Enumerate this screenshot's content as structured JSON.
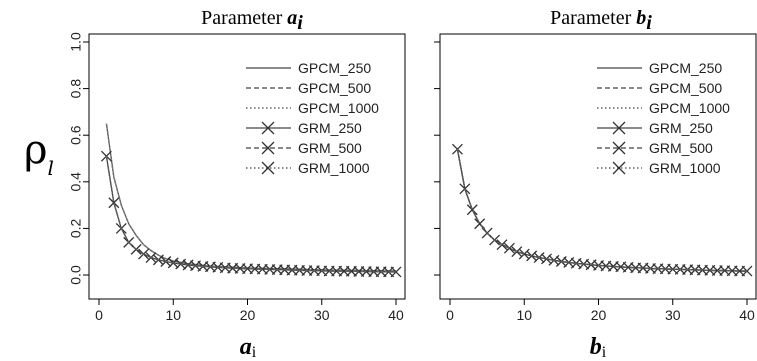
{
  "y_axis_label": {
    "symbol": "ρ",
    "subscript": "l"
  },
  "legend_entries": [
    {
      "label": "GPCM_250",
      "line": "solid",
      "marker": false
    },
    {
      "label": "GPCM_500",
      "line": "dashed",
      "marker": false
    },
    {
      "label": "GPCM_1000",
      "line": "dotted",
      "marker": false
    },
    {
      "label": "GRM_250",
      "line": "solid",
      "marker": true
    },
    {
      "label": "GRM_500",
      "line": "dashed",
      "marker": true
    },
    {
      "label": "GRM_1000",
      "line": "dotted",
      "marker": true
    }
  ],
  "chart_data": [
    {
      "type": "line",
      "title": {
        "text": "Parameter ",
        "symbol": "a",
        "subscript": "i"
      },
      "xlabel": {
        "symbol": "a",
        "subscript": "i"
      },
      "xlim": [
        0,
        40
      ],
      "ylim": [
        0,
        1
      ],
      "xticks": [
        0,
        10,
        20,
        30,
        40
      ],
      "yticks": [
        0.0,
        0.2,
        0.4,
        0.6,
        0.8,
        1.0
      ],
      "legend_position": "top-right",
      "grid": false,
      "series": [
        {
          "name": "GPCM_250",
          "x": [
            1,
            2,
            3,
            4,
            5,
            6,
            7,
            8,
            9,
            10,
            12,
            15,
            20,
            25,
            30,
            35,
            40
          ],
          "y": [
            0.65,
            0.42,
            0.3,
            0.22,
            0.17,
            0.13,
            0.105,
            0.085,
            0.07,
            0.06,
            0.048,
            0.038,
            0.03,
            0.026,
            0.022,
            0.019,
            0.017
          ]
        },
        {
          "name": "GPCM_500",
          "x": [
            1,
            2,
            3,
            4,
            5,
            6,
            7,
            8,
            9,
            10,
            12,
            15,
            20,
            25,
            30,
            35,
            40
          ],
          "y": [
            0.65,
            0.42,
            0.3,
            0.22,
            0.17,
            0.13,
            0.105,
            0.085,
            0.07,
            0.06,
            0.048,
            0.038,
            0.03,
            0.026,
            0.022,
            0.019,
            0.017
          ]
        },
        {
          "name": "GPCM_1000",
          "x": [
            1,
            2,
            3,
            4,
            5,
            6,
            7,
            8,
            9,
            10,
            12,
            15,
            20,
            25,
            30,
            35,
            40
          ],
          "y": [
            0.65,
            0.42,
            0.3,
            0.22,
            0.17,
            0.13,
            0.105,
            0.085,
            0.07,
            0.06,
            0.048,
            0.038,
            0.03,
            0.026,
            0.022,
            0.019,
            0.017
          ]
        },
        {
          "name": "GRM_250",
          "x": [
            1,
            2,
            3,
            4,
            5,
            6,
            7,
            8,
            9,
            10,
            11,
            12,
            13,
            14,
            15,
            16,
            17,
            18,
            19,
            20,
            21,
            22,
            23,
            24,
            25,
            26,
            27,
            28,
            29,
            30,
            31,
            32,
            33,
            34,
            35,
            36,
            37,
            38,
            39,
            40
          ],
          "y": [
            0.51,
            0.31,
            0.2,
            0.14,
            0.11,
            0.09,
            0.075,
            0.065,
            0.058,
            0.052,
            0.047,
            0.043,
            0.04,
            0.037,
            0.035,
            0.033,
            0.031,
            0.029,
            0.028,
            0.027,
            0.026,
            0.025,
            0.024,
            0.023,
            0.022,
            0.021,
            0.02,
            0.019,
            0.019,
            0.018,
            0.017,
            0.017,
            0.016,
            0.016,
            0.015,
            0.015,
            0.014,
            0.014,
            0.013,
            0.013
          ]
        },
        {
          "name": "GRM_500",
          "x": [
            1,
            2,
            3,
            4,
            5,
            6,
            7,
            8,
            9,
            10,
            11,
            12,
            13,
            14,
            15,
            16,
            17,
            18,
            19,
            20,
            21,
            22,
            23,
            24,
            25,
            26,
            27,
            28,
            29,
            30,
            31,
            32,
            33,
            34,
            35,
            36,
            37,
            38,
            39,
            40
          ],
          "y": [
            0.51,
            0.31,
            0.2,
            0.14,
            0.11,
            0.09,
            0.075,
            0.065,
            0.058,
            0.052,
            0.047,
            0.043,
            0.04,
            0.037,
            0.035,
            0.033,
            0.031,
            0.029,
            0.028,
            0.027,
            0.026,
            0.025,
            0.024,
            0.023,
            0.022,
            0.021,
            0.02,
            0.019,
            0.019,
            0.018,
            0.017,
            0.017,
            0.016,
            0.016,
            0.015,
            0.015,
            0.014,
            0.014,
            0.013,
            0.013
          ]
        },
        {
          "name": "GRM_1000",
          "x": [
            1,
            2,
            3,
            4,
            5,
            6,
            7,
            8,
            9,
            10,
            11,
            12,
            13,
            14,
            15,
            16,
            17,
            18,
            19,
            20,
            21,
            22,
            23,
            24,
            25,
            26,
            27,
            28,
            29,
            30,
            31,
            32,
            33,
            34,
            35,
            36,
            37,
            38,
            39,
            40
          ],
          "y": [
            0.51,
            0.31,
            0.2,
            0.14,
            0.11,
            0.09,
            0.075,
            0.065,
            0.058,
            0.052,
            0.047,
            0.043,
            0.04,
            0.037,
            0.035,
            0.033,
            0.031,
            0.029,
            0.028,
            0.027,
            0.026,
            0.025,
            0.024,
            0.023,
            0.022,
            0.021,
            0.02,
            0.019,
            0.019,
            0.018,
            0.017,
            0.017,
            0.016,
            0.016,
            0.015,
            0.015,
            0.014,
            0.014,
            0.013,
            0.013
          ]
        }
      ]
    },
    {
      "type": "line",
      "title": {
        "text": "Parameter ",
        "symbol": "b",
        "subscript": "i"
      },
      "xlabel": {
        "symbol": "b",
        "subscript": "i"
      },
      "xlim": [
        0,
        40
      ],
      "ylim": [
        0,
        1
      ],
      "xticks": [
        0,
        10,
        20,
        30,
        40
      ],
      "yticks": [
        0.0,
        0.2,
        0.4,
        0.6,
        0.8,
        1.0
      ],
      "legend_position": "top-right",
      "grid": false,
      "series": [
        {
          "name": "GPCM_250",
          "x": [
            1,
            2,
            3,
            4,
            5,
            6,
            7,
            8,
            9,
            10,
            11,
            12,
            13,
            14,
            15,
            16,
            17,
            18,
            19,
            20,
            21,
            22,
            23,
            24,
            25,
            26,
            27,
            28,
            29,
            30,
            31,
            32,
            33,
            34,
            35,
            36,
            37,
            38,
            39,
            40
          ],
          "y": [
            0.54,
            0.37,
            0.28,
            0.22,
            0.18,
            0.15,
            0.13,
            0.115,
            0.1,
            0.09,
            0.082,
            0.075,
            0.069,
            0.063,
            0.058,
            0.054,
            0.05,
            0.047,
            0.044,
            0.041,
            0.039,
            0.037,
            0.035,
            0.033,
            0.031,
            0.03,
            0.028,
            0.027,
            0.026,
            0.025,
            0.024,
            0.023,
            0.022,
            0.021,
            0.02,
            0.019,
            0.019,
            0.018,
            0.017,
            0.017
          ]
        },
        {
          "name": "GPCM_500",
          "x": [
            1,
            2,
            3,
            4,
            5,
            6,
            7,
            8,
            9,
            10,
            11,
            12,
            13,
            14,
            15,
            16,
            17,
            18,
            19,
            20,
            21,
            22,
            23,
            24,
            25,
            26,
            27,
            28,
            29,
            30,
            31,
            32,
            33,
            34,
            35,
            36,
            37,
            38,
            39,
            40
          ],
          "y": [
            0.54,
            0.37,
            0.28,
            0.22,
            0.18,
            0.15,
            0.13,
            0.115,
            0.1,
            0.09,
            0.082,
            0.075,
            0.069,
            0.063,
            0.058,
            0.054,
            0.05,
            0.047,
            0.044,
            0.041,
            0.039,
            0.037,
            0.035,
            0.033,
            0.031,
            0.03,
            0.028,
            0.027,
            0.026,
            0.025,
            0.024,
            0.023,
            0.022,
            0.021,
            0.02,
            0.019,
            0.019,
            0.018,
            0.017,
            0.017
          ]
        },
        {
          "name": "GPCM_1000",
          "x": [
            1,
            2,
            3,
            4,
            5,
            6,
            7,
            8,
            9,
            10,
            11,
            12,
            13,
            14,
            15,
            16,
            17,
            18,
            19,
            20,
            21,
            22,
            23,
            24,
            25,
            26,
            27,
            28,
            29,
            30,
            31,
            32,
            33,
            34,
            35,
            36,
            37,
            38,
            39,
            40
          ],
          "y": [
            0.54,
            0.37,
            0.28,
            0.22,
            0.18,
            0.15,
            0.13,
            0.115,
            0.1,
            0.09,
            0.082,
            0.075,
            0.069,
            0.063,
            0.058,
            0.054,
            0.05,
            0.047,
            0.044,
            0.041,
            0.039,
            0.037,
            0.035,
            0.033,
            0.031,
            0.03,
            0.028,
            0.027,
            0.026,
            0.025,
            0.024,
            0.023,
            0.022,
            0.021,
            0.02,
            0.019,
            0.019,
            0.018,
            0.017,
            0.017
          ]
        },
        {
          "name": "GRM_250",
          "x": [
            1,
            2,
            3,
            4,
            5,
            6,
            7,
            8,
            9,
            10,
            11,
            12,
            13,
            14,
            15,
            16,
            17,
            18,
            19,
            20,
            21,
            22,
            23,
            24,
            25,
            26,
            27,
            28,
            29,
            30,
            31,
            32,
            33,
            34,
            35,
            36,
            37,
            38,
            39,
            40
          ],
          "y": [
            0.54,
            0.37,
            0.28,
            0.22,
            0.18,
            0.15,
            0.13,
            0.115,
            0.1,
            0.09,
            0.082,
            0.075,
            0.069,
            0.063,
            0.058,
            0.054,
            0.05,
            0.047,
            0.044,
            0.041,
            0.039,
            0.037,
            0.035,
            0.033,
            0.031,
            0.03,
            0.028,
            0.027,
            0.026,
            0.025,
            0.024,
            0.023,
            0.022,
            0.021,
            0.02,
            0.019,
            0.019,
            0.018,
            0.017,
            0.017
          ]
        },
        {
          "name": "GRM_500",
          "x": [
            1,
            2,
            3,
            4,
            5,
            6,
            7,
            8,
            9,
            10,
            11,
            12,
            13,
            14,
            15,
            16,
            17,
            18,
            19,
            20,
            21,
            22,
            23,
            24,
            25,
            26,
            27,
            28,
            29,
            30,
            31,
            32,
            33,
            34,
            35,
            36,
            37,
            38,
            39,
            40
          ],
          "y": [
            0.54,
            0.37,
            0.28,
            0.22,
            0.18,
            0.15,
            0.13,
            0.115,
            0.1,
            0.09,
            0.082,
            0.075,
            0.069,
            0.063,
            0.058,
            0.054,
            0.05,
            0.047,
            0.044,
            0.041,
            0.039,
            0.037,
            0.035,
            0.033,
            0.031,
            0.03,
            0.028,
            0.027,
            0.026,
            0.025,
            0.024,
            0.023,
            0.022,
            0.021,
            0.02,
            0.019,
            0.019,
            0.018,
            0.017,
            0.017
          ]
        },
        {
          "name": "GRM_1000",
          "x": [
            1,
            2,
            3,
            4,
            5,
            6,
            7,
            8,
            9,
            10,
            11,
            12,
            13,
            14,
            15,
            16,
            17,
            18,
            19,
            20,
            21,
            22,
            23,
            24,
            25,
            26,
            27,
            28,
            29,
            30,
            31,
            32,
            33,
            34,
            35,
            36,
            37,
            38,
            39,
            40
          ],
          "y": [
            0.54,
            0.37,
            0.28,
            0.22,
            0.18,
            0.15,
            0.13,
            0.115,
            0.1,
            0.09,
            0.082,
            0.075,
            0.069,
            0.063,
            0.058,
            0.054,
            0.05,
            0.047,
            0.044,
            0.041,
            0.039,
            0.037,
            0.035,
            0.033,
            0.031,
            0.03,
            0.028,
            0.027,
            0.026,
            0.025,
            0.024,
            0.023,
            0.022,
            0.021,
            0.02,
            0.019,
            0.019,
            0.018,
            0.017,
            0.017
          ]
        }
      ]
    }
  ]
}
